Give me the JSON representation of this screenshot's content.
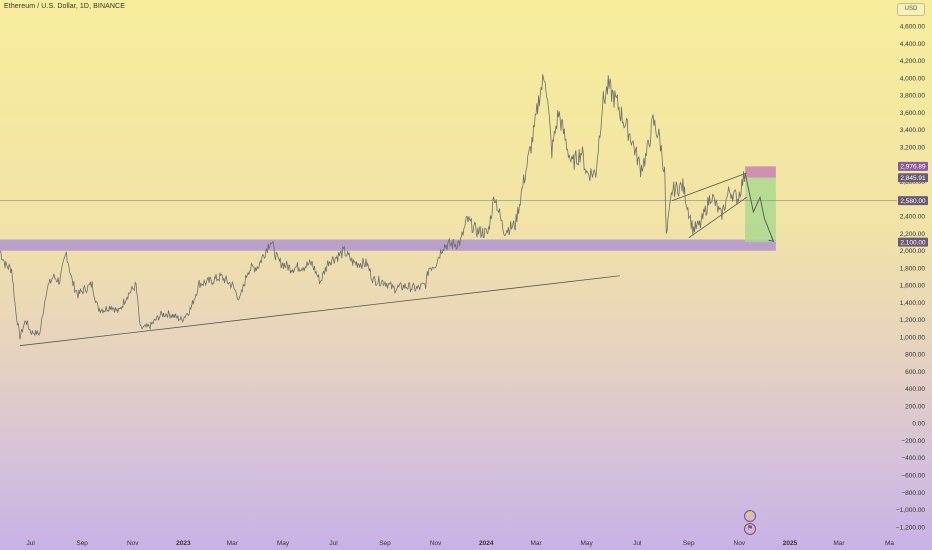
{
  "header": {
    "title": "Ethereum / U.S. Dollar, 1D, BINANCE",
    "currency": "USD"
  },
  "markers": {
    "bolt_icon": "lightning-icon",
    "flag_icon": "event-flag-icon"
  },
  "colors": {
    "price_line": "#6e6e6e",
    "support_band": "#a98ad6",
    "target_zone": "#a8d88f",
    "stop_zone": "#c77bb5",
    "tag_dark": "#6b5a74",
    "tag_purple": "#8a5b9a",
    "drawing": "#555555"
  },
  "chart_data": {
    "type": "line",
    "title": "Ethereum / U.S. Dollar, 1D, BINANCE",
    "xlabel": "",
    "ylabel": "",
    "ylim": [
      -1200,
      4800
    ],
    "y_ticks": [
      4600,
      4400,
      4200,
      4000,
      3800,
      3600,
      3400,
      3200,
      3000,
      2800,
      2600,
      2400,
      2200,
      2000,
      1800,
      1600,
      1400,
      1200,
      1000,
      800,
      600,
      400,
      200,
      0,
      -200,
      -400,
      -600,
      -800,
      -1000,
      -1200
    ],
    "y_tick_labels": [
      "4,600.00",
      "4,400.00",
      "4,200.00",
      "4,000.00",
      "3,800.00",
      "3,600.00",
      "3,400.00",
      "3,200.00",
      "3,000.00",
      "2,800.00",
      "2,600.00",
      "2,400.00",
      "2,200.00",
      "2,000.00",
      "1,800.00",
      "1,600.00",
      "1,400.00",
      "1,200.00",
      "1,000.00",
      "800.00",
      "600.00",
      "400.00",
      "200.00",
      "0.00",
      "−200.00",
      "−400.00",
      "−600.00",
      "−800.00",
      "−1,000.00",
      "−1,200.00"
    ],
    "x_ticks": [
      {
        "date": "2022-07-01",
        "label": "Jul",
        "bold": false
      },
      {
        "date": "2022-09-01",
        "label": "Sep",
        "bold": false
      },
      {
        "date": "2022-11-01",
        "label": "Nov",
        "bold": false
      },
      {
        "date": "2023-01-01",
        "label": "2023",
        "bold": true
      },
      {
        "date": "2023-03-01",
        "label": "Mar",
        "bold": false
      },
      {
        "date": "2023-05-01",
        "label": "May",
        "bold": false
      },
      {
        "date": "2023-07-01",
        "label": "Jul",
        "bold": false
      },
      {
        "date": "2023-09-01",
        "label": "Sep",
        "bold": false
      },
      {
        "date": "2023-11-01",
        "label": "Nov",
        "bold": false
      },
      {
        "date": "2024-01-01",
        "label": "2024",
        "bold": true
      },
      {
        "date": "2024-03-01",
        "label": "Mar",
        "bold": false
      },
      {
        "date": "2024-05-01",
        "label": "May",
        "bold": false
      },
      {
        "date": "2024-07-01",
        "label": "Jul",
        "bold": false
      },
      {
        "date": "2024-09-01",
        "label": "Sep",
        "bold": false
      },
      {
        "date": "2024-11-01",
        "label": "Nov",
        "bold": false
      },
      {
        "date": "2025-01-01",
        "label": "2025",
        "bold": true
      },
      {
        "date": "2025-03-01",
        "label": "Mar",
        "bold": false
      },
      {
        "date": "2025-05-01",
        "label": "Ma",
        "bold": false
      }
    ],
    "xlim": [
      "2022-05-25",
      "2025-05-10"
    ],
    "series": [
      {
        "values": [
          [
            "2022-05-25",
            2000
          ],
          [
            "2022-06-01",
            1830
          ],
          [
            "2022-06-08",
            1790
          ],
          [
            "2022-06-13",
            1300
          ],
          [
            "2022-06-18",
            1000
          ],
          [
            "2022-06-25",
            1200
          ],
          [
            "2022-07-01",
            1060
          ],
          [
            "2022-07-12",
            1040
          ],
          [
            "2022-07-20",
            1550
          ],
          [
            "2022-07-28",
            1700
          ],
          [
            "2022-08-05",
            1650
          ],
          [
            "2022-08-13",
            1980
          ],
          [
            "2022-08-20",
            1640
          ],
          [
            "2022-08-27",
            1490
          ],
          [
            "2022-09-05",
            1560
          ],
          [
            "2022-09-13",
            1610
          ],
          [
            "2022-09-20",
            1330
          ],
          [
            "2022-09-28",
            1320
          ],
          [
            "2022-10-06",
            1360
          ],
          [
            "2022-10-15",
            1290
          ],
          [
            "2022-10-25",
            1480
          ],
          [
            "2022-11-05",
            1600
          ],
          [
            "2022-11-10",
            1100
          ],
          [
            "2022-11-21",
            1120
          ],
          [
            "2022-12-05",
            1260
          ],
          [
            "2022-12-15",
            1270
          ],
          [
            "2022-12-30",
            1200
          ],
          [
            "2023-01-10",
            1330
          ],
          [
            "2023-01-20",
            1620
          ],
          [
            "2023-02-01",
            1640
          ],
          [
            "2023-02-15",
            1700
          ],
          [
            "2023-03-01",
            1600
          ],
          [
            "2023-03-10",
            1430
          ],
          [
            "2023-03-20",
            1780
          ],
          [
            "2023-04-01",
            1820
          ],
          [
            "2023-04-16",
            2120
          ],
          [
            "2023-04-25",
            1880
          ],
          [
            "2023-05-10",
            1800
          ],
          [
            "2023-05-25",
            1820
          ],
          [
            "2023-06-05",
            1850
          ],
          [
            "2023-06-15",
            1640
          ],
          [
            "2023-06-25",
            1880
          ],
          [
            "2023-07-05",
            1930
          ],
          [
            "2023-07-14",
            1990
          ],
          [
            "2023-07-25",
            1860
          ],
          [
            "2023-08-10",
            1850
          ],
          [
            "2023-08-18",
            1660
          ],
          [
            "2023-09-01",
            1640
          ],
          [
            "2023-09-11",
            1560
          ],
          [
            "2023-09-25",
            1590
          ],
          [
            "2023-10-10",
            1560
          ],
          [
            "2023-10-20",
            1610
          ],
          [
            "2023-10-24",
            1800
          ],
          [
            "2023-11-01",
            1850
          ],
          [
            "2023-11-10",
            2060
          ],
          [
            "2023-11-25",
            2080
          ],
          [
            "2023-12-01",
            2100
          ],
          [
            "2023-12-09",
            2360
          ],
          [
            "2023-12-20",
            2230
          ],
          [
            "2024-01-03",
            2200
          ],
          [
            "2024-01-11",
            2650
          ],
          [
            "2024-01-22",
            2230
          ],
          [
            "2024-02-05",
            2300
          ],
          [
            "2024-02-15",
            2800
          ],
          [
            "2024-02-28",
            3400
          ],
          [
            "2024-03-05",
            3800
          ],
          [
            "2024-03-12",
            4050
          ],
          [
            "2024-03-20",
            3150
          ],
          [
            "2024-03-28",
            3600
          ],
          [
            "2024-04-05",
            3300
          ],
          [
            "2024-04-13",
            3000
          ],
          [
            "2024-04-25",
            3150
          ],
          [
            "2024-05-01",
            2900
          ],
          [
            "2024-05-12",
            2900
          ],
          [
            "2024-05-20",
            3700
          ],
          [
            "2024-05-27",
            3900
          ],
          [
            "2024-06-07",
            3700
          ],
          [
            "2024-06-15",
            3500
          ],
          [
            "2024-06-24",
            3300
          ],
          [
            "2024-07-05",
            2950
          ],
          [
            "2024-07-12",
            3100
          ],
          [
            "2024-07-20",
            3500
          ],
          [
            "2024-07-28",
            3300
          ],
          [
            "2024-08-03",
            2900
          ],
          [
            "2024-08-05",
            2150
          ],
          [
            "2024-08-12",
            2700
          ],
          [
            "2024-08-25",
            2750
          ],
          [
            "2024-09-06",
            2250
          ],
          [
            "2024-09-15",
            2300
          ],
          [
            "2024-09-28",
            2650
          ],
          [
            "2024-10-10",
            2400
          ],
          [
            "2024-10-20",
            2700
          ],
          [
            "2024-10-30",
            2600
          ],
          [
            "2024-11-08",
            2900
          ]
        ]
      }
    ],
    "annotations": {
      "horizontal_band": {
        "y1": 2000,
        "y2": 2130,
        "from": "2022-05-25",
        "to": "2024-12-15"
      },
      "trendline_low": {
        "from": [
          "2022-06-18",
          900
        ],
        "to": [
          "2024-06-10",
          1710
        ]
      },
      "wedge_upper": {
        "from": [
          "2024-08-12",
          2580
        ],
        "to": [
          "2024-11-10",
          2900
        ]
      },
      "wedge_lower": {
        "from": [
          "2024-09-01",
          2150
        ],
        "to": [
          "2024-11-10",
          2620
        ]
      },
      "projected_path": [
        [
          "2024-11-08",
          2900
        ],
        [
          "2024-11-18",
          2450
        ],
        [
          "2024-11-26",
          2620
        ],
        [
          "2024-12-01",
          2380
        ],
        [
          "2024-12-12",
          2110
        ]
      ],
      "position": {
        "from": "2024-11-08",
        "to": "2024-12-15",
        "entry": 2845.91,
        "stop": 2976.89,
        "target": 2100
      },
      "crosshair_y": 2580
    },
    "price_tags": [
      {
        "value": 2976.89,
        "label": "2,976.89",
        "color": "tag_purple"
      },
      {
        "value": 2845.91,
        "label": "2,845.91",
        "color": "tag_dark"
      },
      {
        "value": 2580,
        "label": "2,580.00",
        "color": "tag_dark"
      },
      {
        "value": 2100,
        "label": "2,100.00",
        "color": "tag_dark"
      }
    ]
  }
}
